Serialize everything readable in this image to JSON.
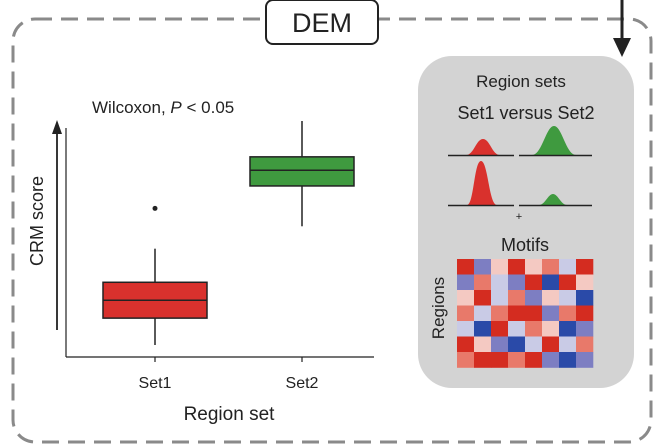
{
  "header": {
    "title": "DEM"
  },
  "boxplot": {
    "test_prefix": "Wilcoxon, ",
    "test_p": "P",
    "test_suffix": " < 0.05",
    "y_label": "CRM score",
    "x_label": "Region set",
    "groups": [
      {
        "name": "Set1",
        "color": "#d9312d",
        "whisker_low": 0.0,
        "q1": 0.12,
        "median": 0.2,
        "q3": 0.28,
        "whisker_high": 0.43,
        "outlier": 0.61
      },
      {
        "name": "Set2",
        "color": "#3f9a3f",
        "whisker_low": 0.53,
        "q1": 0.71,
        "median": 0.78,
        "q3": 0.84,
        "whisker_high": 1.0
      }
    ]
  },
  "panel": {
    "title": "Region sets",
    "subtitle": "Set1 versus Set2",
    "plus": "+",
    "motifs_label": "Motifs",
    "regions_label": "Regions",
    "heatmap_colors": [
      "#2a4aa8",
      "#7d7ec2",
      "#c9cbe6",
      "#f4c9c2",
      "#e8796a",
      "#d42c20"
    ],
    "heatmap": [
      [
        5,
        1,
        3,
        5,
        3,
        4,
        2,
        5
      ],
      [
        1,
        4,
        2,
        1,
        5,
        0,
        5,
        3
      ],
      [
        3,
        5,
        2,
        4,
        1,
        3,
        2,
        0
      ],
      [
        4,
        2,
        4,
        5,
        5,
        1,
        4,
        5
      ],
      [
        2,
        0,
        5,
        2,
        4,
        3,
        0,
        1
      ],
      [
        5,
        3,
        1,
        0,
        2,
        5,
        2,
        4
      ],
      [
        4,
        5,
        5,
        4,
        5,
        1,
        0,
        1
      ]
    ]
  }
}
